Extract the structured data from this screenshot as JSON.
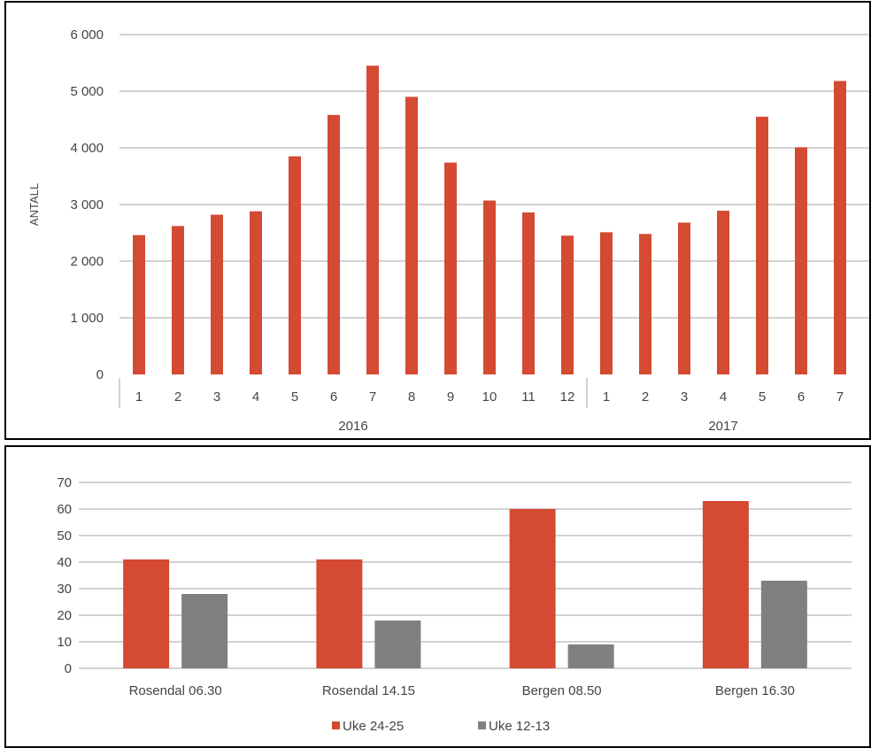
{
  "colors": {
    "series_primary": "#d44a33",
    "series_secondary": "#808080",
    "grid": "#a6a6a6",
    "axis_text": "#444444"
  },
  "chart_data": [
    {
      "type": "bar",
      "ylabel": "ANTALL",
      "ylim": [
        0,
        6000
      ],
      "yticks": [
        0,
        1000,
        2000,
        3000,
        4000,
        5000,
        6000
      ],
      "ytick_labels": [
        "0",
        "1 000",
        "2 000",
        "3 000",
        "4 000",
        "5 000",
        "6 000"
      ],
      "grid": true,
      "legend": "none",
      "categories": [
        "1",
        "2",
        "3",
        "4",
        "5",
        "6",
        "7",
        "8",
        "9",
        "10",
        "11",
        "12",
        "1",
        "2",
        "3",
        "4",
        "5",
        "6",
        "7"
      ],
      "groups": [
        {
          "label": "2016",
          "count": 12
        },
        {
          "label": "2017",
          "count": 7
        }
      ],
      "values": [
        2460,
        2620,
        2820,
        2880,
        3850,
        4580,
        5450,
        4900,
        3740,
        3070,
        2860,
        2450,
        2510,
        2480,
        2680,
        2890,
        4550,
        4010,
        5180
      ]
    },
    {
      "type": "bar",
      "ylim": [
        0,
        70
      ],
      "yticks": [
        0,
        10,
        20,
        30,
        40,
        50,
        60,
        70
      ],
      "grid": true,
      "legend": "bottom",
      "categories": [
        "Rosendal 06.30",
        "Rosendal 14.15",
        "Bergen 08.50",
        "Bergen 16.30"
      ],
      "series": [
        {
          "name": "Uke 24-25",
          "values": [
            41,
            41,
            60,
            63
          ]
        },
        {
          "name": "Uke 12-13",
          "values": [
            28,
            18,
            9,
            33
          ]
        }
      ]
    }
  ]
}
